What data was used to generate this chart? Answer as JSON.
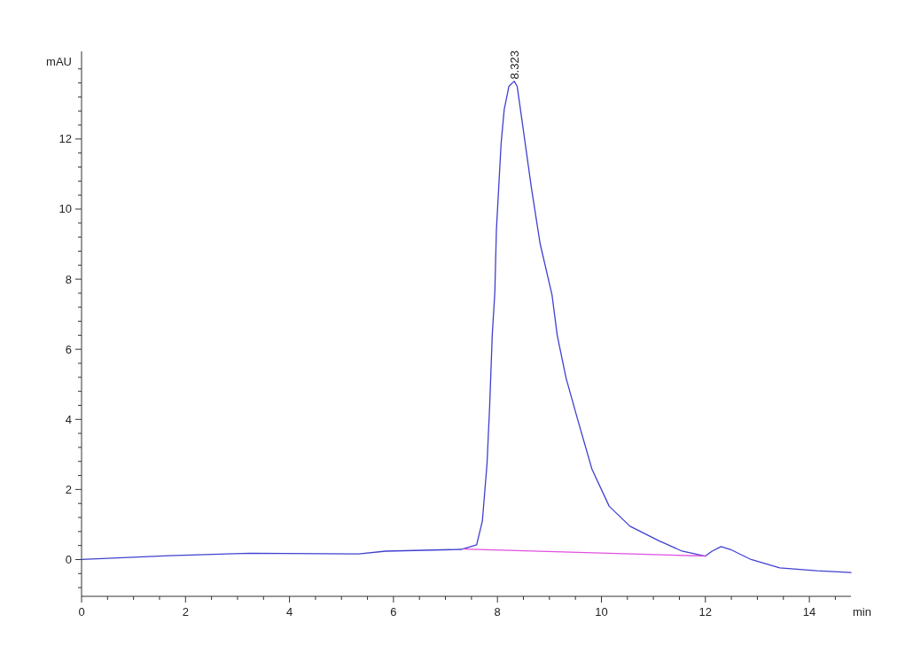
{
  "chart_data": {
    "type": "line",
    "xlabel": "min",
    "ylabel": "mAU",
    "xlim": [
      0,
      14.8
    ],
    "ylim": [
      -1.05,
      14.5
    ],
    "xticks": [
      0,
      {
        "value": 0.5,
        "label": null
      },
      {
        "value": 1,
        "label": null
      },
      {
        "value": 1.5,
        "label": null
      },
      2,
      {
        "value": 2.5,
        "label": null
      },
      {
        "value": 3,
        "label": null
      },
      {
        "value": 3.5,
        "label": null
      },
      4,
      {
        "value": 4.5,
        "label": null
      },
      {
        "value": 5,
        "label": null
      },
      {
        "value": 5.5,
        "label": null
      },
      6,
      {
        "value": 6.5,
        "label": null
      },
      {
        "value": 7,
        "label": null
      },
      {
        "value": 7.5,
        "label": null
      },
      8,
      {
        "value": 8.5,
        "label": null
      },
      {
        "value": 9,
        "label": null
      },
      {
        "value": 9.5,
        "label": null
      },
      10,
      {
        "value": 10.5,
        "label": null
      },
      {
        "value": 11,
        "label": null
      },
      {
        "value": 11.5,
        "label": null
      },
      12,
      {
        "value": 12.5,
        "label": null
      },
      {
        "value": 13,
        "label": null
      },
      {
        "value": 13.5,
        "label": null
      },
      14,
      {
        "value": 14.5,
        "label": null
      }
    ],
    "yticks": [
      {
        "value": -0.8,
        "label": null
      },
      {
        "value": -0.4,
        "label": null
      },
      0,
      {
        "value": 0.4,
        "label": null
      },
      {
        "value": 0.8,
        "label": null
      },
      {
        "value": 1.2,
        "label": null
      },
      {
        "value": 1.6,
        "label": null
      },
      2,
      {
        "value": 2.4,
        "label": null
      },
      {
        "value": 2.8,
        "label": null
      },
      {
        "value": 3.2,
        "label": null
      },
      {
        "value": 3.6,
        "label": null
      },
      4,
      {
        "value": 4.4,
        "label": null
      },
      {
        "value": 4.8,
        "label": null
      },
      {
        "value": 5.2,
        "label": null
      },
      {
        "value": 5.6,
        "label": null
      },
      6,
      {
        "value": 6.4,
        "label": null
      },
      {
        "value": 6.8,
        "label": null
      },
      {
        "value": 7.2,
        "label": null
      },
      {
        "value": 7.6,
        "label": null
      },
      8,
      {
        "value": 8.4,
        "label": null
      },
      {
        "value": 8.8,
        "label": null
      },
      {
        "value": 9.2,
        "label": null
      },
      {
        "value": 9.6,
        "label": null
      },
      10,
      {
        "value": 10.4,
        "label": null
      },
      {
        "value": 10.8,
        "label": null
      },
      {
        "value": 11.2,
        "label": null
      },
      {
        "value": 11.6,
        "label": null
      },
      12,
      {
        "value": 12.4,
        "label": null
      },
      {
        "value": 12.8,
        "label": null
      },
      {
        "value": 13.2,
        "label": null
      },
      {
        "value": 13.6,
        "label": null
      },
      {
        "value": 14,
        "label": null
      }
    ],
    "grid": false,
    "marker": "none",
    "line_style": "solid",
    "series": [
      {
        "color": "#4040d0",
        "x": [
          0,
          1.68,
          3.25,
          5.33,
          5.85,
          7.3,
          7.6,
          7.71,
          7.8,
          7.85,
          7.9,
          7.95,
          7.98,
          8.07,
          8.13,
          8.22,
          8.323,
          8.38,
          8.48,
          8.65,
          8.82,
          9.05,
          9.15,
          9.32,
          9.55,
          9.82,
          10.15,
          10.55,
          11.1,
          11.55,
          12.0,
          12.13,
          12.3,
          12.48,
          12.88,
          13.43,
          14.15,
          14.8
        ],
        "values": [
          0,
          0.11,
          0.18,
          0.16,
          0.24,
          0.29,
          0.42,
          1.1,
          2.74,
          4.37,
          6.4,
          7.63,
          9.4,
          11.86,
          12.84,
          13.5,
          13.65,
          13.5,
          12.45,
          10.64,
          9.02,
          7.55,
          6.4,
          5.18,
          3.96,
          2.57,
          1.52,
          0.95,
          0.54,
          0.24,
          0.1,
          0.24,
          0.37,
          0.29,
          0,
          -0.24,
          -0.32,
          -0.37
        ]
      },
      {
        "color": "#e050e0",
        "x": [
          7.35,
          12.0
        ],
        "values": [
          0.3,
          0.1
        ]
      }
    ],
    "annotations": [
      {
        "text": "8.323",
        "x": 8.323,
        "y": 13.65
      }
    ]
  }
}
